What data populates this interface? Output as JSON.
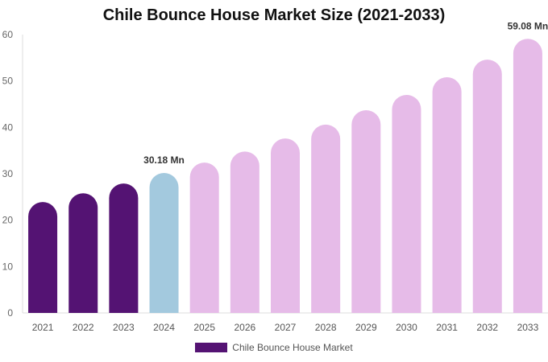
{
  "chart_data": {
    "type": "bar",
    "title": "Chile Bounce House Market Size (2021-2033)",
    "categories": [
      "2021",
      "2022",
      "2023",
      "2024",
      "2025",
      "2026",
      "2027",
      "2028",
      "2029",
      "2030",
      "2031",
      "2032",
      "2033"
    ],
    "series": [
      {
        "name": "Chile Bounce House Market",
        "values": [
          23.9,
          25.8,
          27.9,
          30.18,
          32.4,
          34.8,
          37.6,
          40.6,
          43.7,
          47.0,
          50.8,
          54.6,
          59.08
        ]
      }
    ],
    "data_labels": [
      {
        "category": "2024",
        "text": "30.18 Mn"
      },
      {
        "category": "2033",
        "text": "59.08 Mn"
      }
    ],
    "yticks": [
      "0",
      "10",
      "20",
      "30",
      "40",
      "50",
      "60"
    ],
    "ylim": [
      0,
      60
    ],
    "xlabel": "",
    "ylabel": "",
    "grid": false,
    "legend": "bottom",
    "colors": {
      "historical": "#541373",
      "current": "#a3c9de",
      "forecast": "#e6bbe8"
    }
  }
}
